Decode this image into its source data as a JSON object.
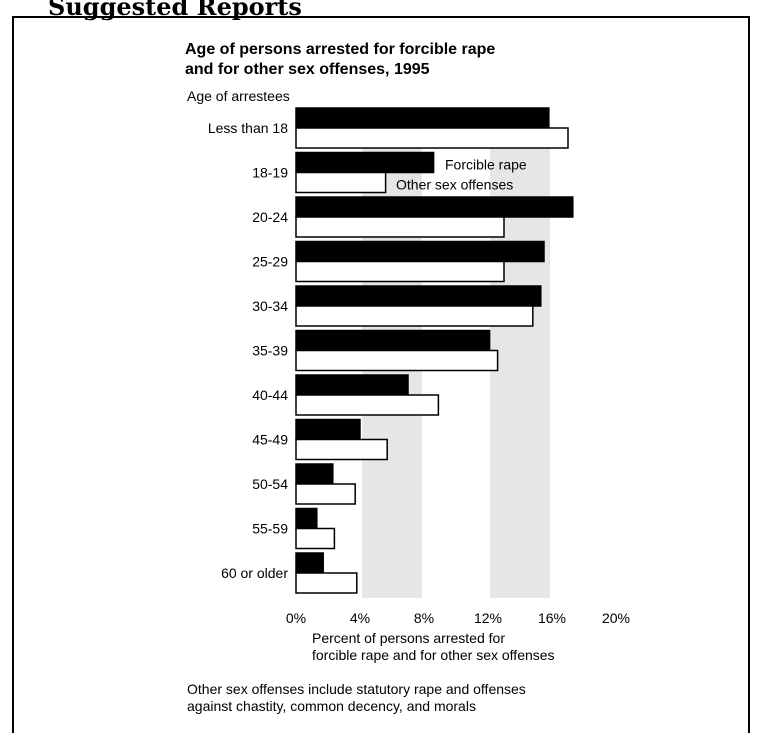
{
  "page": {
    "cut_heading": "Suggested Reports"
  },
  "chart_data": {
    "type": "bar",
    "orientation": "horizontal",
    "title_lines": [
      "Age of persons arrested for forcible rape",
      "and for other sex offenses, 1995"
    ],
    "ylabel": "Age of arrestees",
    "xlabel_lines": [
      "Percent of persons arrested for",
      "forcible rape and  for other sex offenses"
    ],
    "footnote_lines": [
      "Other sex offenses include statutory rape and offenses",
      "against chastity, common decency, and morals"
    ],
    "categories": [
      "Less than 18",
      "18-19",
      "20-24",
      "25-29",
      "30-34",
      "35-39",
      "40-44",
      "45-49",
      "50-54",
      "55-59",
      "60 or older"
    ],
    "series": [
      {
        "name": "Forcible rape",
        "color": "#000000",
        "values": [
          15.8,
          8.6,
          17.3,
          15.5,
          15.3,
          12.1,
          7.0,
          4.0,
          2.3,
          1.3,
          1.7
        ]
      },
      {
        "name": "Other sex offenses",
        "color": "#ffffff",
        "values": [
          17.0,
          5.6,
          13.0,
          13.0,
          14.8,
          12.6,
          8.9,
          5.7,
          3.7,
          2.4,
          3.8
        ]
      }
    ],
    "xlim": [
      0,
      20
    ],
    "xticks": [
      0,
      4,
      8,
      12,
      16,
      20
    ],
    "xtick_labels": [
      "0%",
      "4%",
      "8%",
      "12%",
      "16%",
      "20%"
    ],
    "background_bands": "alternating gray bands between gridlines",
    "band_color": "#e6e6e6",
    "legend_placement": "inline-right-of-18-19-bars"
  }
}
